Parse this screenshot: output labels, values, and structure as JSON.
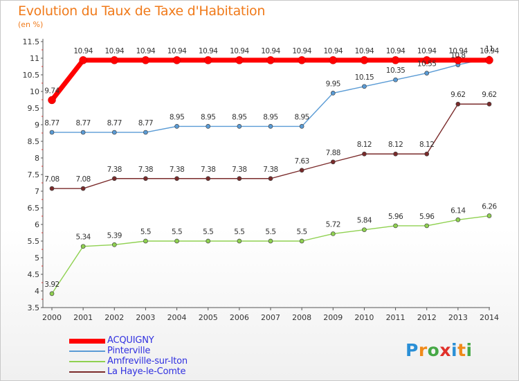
{
  "title": "Evolution du Taux de Taxe d'Habitation",
  "subtitle": "(en %)",
  "logo": {
    "letters": [
      "P",
      "r",
      "o",
      "x",
      "i",
      "t",
      "i"
    ],
    "colors": [
      "#2a8fd6",
      "#f08a1a",
      "#46a846",
      "#e0302a",
      "#2a8fd6",
      "#f08a1a",
      "#46a846"
    ]
  },
  "chart_data": {
    "type": "line",
    "x": [
      "2000",
      "2001",
      "2002",
      "2003",
      "2004",
      "2005",
      "2006",
      "2007",
      "2008",
      "2009",
      "2010",
      "2011",
      "2012",
      "2013",
      "2014"
    ],
    "ylim": [
      3.5,
      11.5
    ],
    "yticks": [
      "3.5",
      "4",
      "4.5",
      "5",
      "5.5",
      "6",
      "6.5",
      "7",
      "7.5",
      "8",
      "8.5",
      "9",
      "9.5",
      "10",
      "10.5",
      "11",
      "11.5"
    ],
    "grid": false,
    "legend_placement": "bottom-left",
    "series": [
      {
        "name": "ACQUIGNY",
        "color": "#ff0000",
        "label_color": "#3030e0",
        "width": 7,
        "marker": 5.5,
        "values": [
          9.74,
          10.94,
          10.94,
          10.94,
          10.94,
          10.94,
          10.94,
          10.94,
          10.94,
          10.94,
          10.94,
          10.94,
          10.94,
          10.94,
          10.94
        ],
        "labels": [
          "9.74",
          "10.94",
          "10.94",
          "10.94",
          "10.94",
          "10.94",
          "10.94",
          "10.94",
          "10.94",
          "10.94",
          "10.94",
          "10.94",
          "10.94",
          "10.94",
          "10.94"
        ]
      },
      {
        "name": "Pinterville",
        "color": "#5a9bd5",
        "label_color": "#3030e0",
        "width": 1.4,
        "marker": 3,
        "values": [
          8.77,
          8.77,
          8.77,
          8.77,
          8.95,
          8.95,
          8.95,
          8.95,
          8.95,
          9.95,
          10.15,
          10.35,
          10.55,
          10.8,
          11
        ],
        "labels": [
          "8.77",
          "8.77",
          "8.77",
          "8.77",
          "8.95",
          "8.95",
          "8.95",
          "8.95",
          "8.95",
          "9.95",
          "10.15",
          "10.35",
          "10.55",
          "10.8",
          "11"
        ]
      },
      {
        "name": "Amfreville-sur-Iton",
        "color": "#8fd150",
        "label_color": "#3030e0",
        "width": 1.4,
        "marker": 3,
        "values": [
          3.92,
          5.34,
          5.39,
          5.5,
          5.5,
          5.5,
          5.5,
          5.5,
          5.5,
          5.72,
          5.84,
          5.96,
          5.96,
          6.14,
          6.26
        ],
        "labels": [
          "3.92",
          "5.34",
          "5.39",
          "5.5",
          "5.5",
          "5.5",
          "5.5",
          "5.5",
          "5.5",
          "5.72",
          "5.84",
          "5.96",
          "5.96",
          "6.14",
          "6.26"
        ]
      },
      {
        "name": "La Haye-le-Comte",
        "color": "#7a2a2a",
        "label_color": "#3030e0",
        "width": 1.4,
        "marker": 3,
        "values": [
          7.08,
          7.08,
          7.38,
          7.38,
          7.38,
          7.38,
          7.38,
          7.38,
          7.63,
          7.88,
          8.12,
          8.12,
          8.12,
          9.62,
          9.62
        ],
        "labels": [
          "7.08",
          "7.08",
          "7.38",
          "7.38",
          "7.38",
          "7.38",
          "7.38",
          "7.38",
          "7.63",
          "7.88",
          "8.12",
          "8.12",
          "8.12",
          "9.62",
          "9.62"
        ]
      }
    ]
  }
}
